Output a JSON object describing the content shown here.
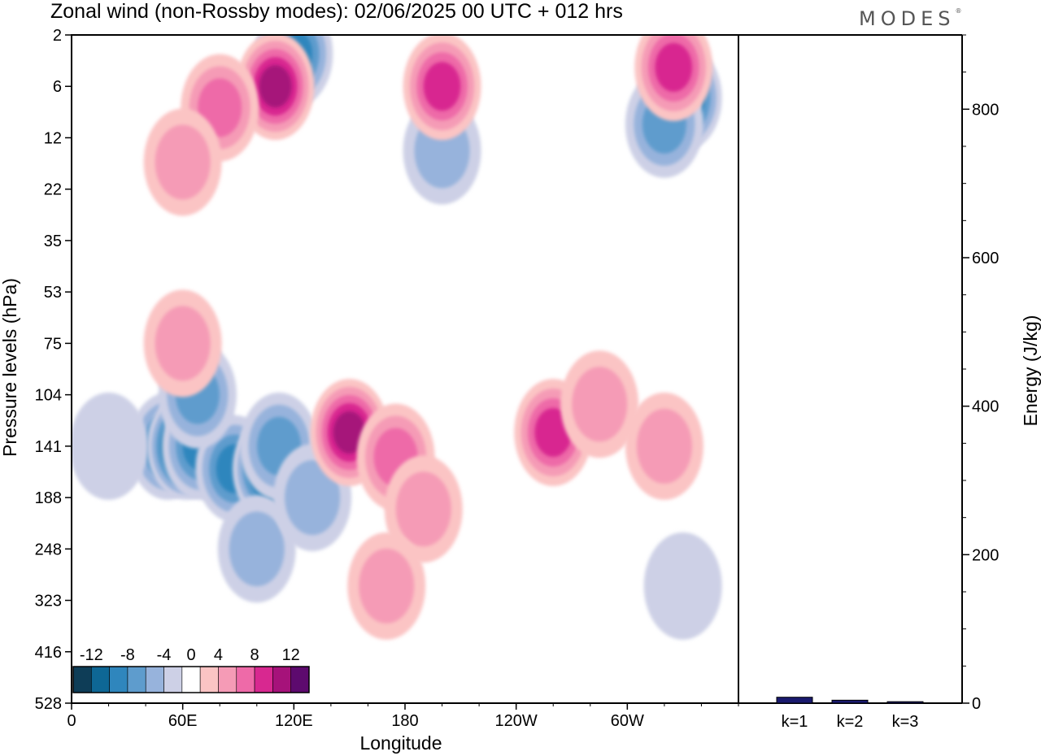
{
  "header": {
    "title": "Zonal wind (non-Rossby modes):  02/06/2025  00 UTC  + 012 hrs",
    "brand": "MODES"
  },
  "chart_data": [
    {
      "type": "heatmap",
      "xlabel": "Longitude",
      "ylabel": "Pressure levels (hPa)",
      "x_ticks": [
        "0",
        "60E",
        "120E",
        "180",
        "120W",
        "60W"
      ],
      "x_tick_values": [
        0,
        60,
        120,
        180,
        240,
        300
      ],
      "xlim": [
        0,
        360
      ],
      "y_ticks": [
        "2",
        "6",
        "12",
        "22",
        "35",
        "53",
        "75",
        "104",
        "141",
        "188",
        "248",
        "323",
        "416",
        "528"
      ],
      "y_scale": "pressure-levels",
      "colorbar": {
        "labels": [
          "-12",
          "-8",
          "-4",
          "0",
          "4",
          "8",
          "12"
        ],
        "levels": [
          -14,
          -12,
          -10,
          -8,
          -6,
          -4,
          -2,
          2,
          4,
          6,
          8,
          10,
          12,
          14
        ],
        "colors": [
          "#0e3d57",
          "#0e6795",
          "#2f86bd",
          "#5e9ccd",
          "#97b3dc",
          "#cdd0e6",
          "#ffffff",
          "#fbc4c4",
          "#f59bb6",
          "#ee6aa8",
          "#d82890",
          "#a6127a",
          "#5d0a6e"
        ]
      },
      "blobs": [
        {
          "x": 52,
          "p": 141,
          "v": -8
        },
        {
          "x": 62,
          "p": 141,
          "v": -14
        },
        {
          "x": 70,
          "p": 141,
          "v": -8
        },
        {
          "x": 88,
          "p": 160,
          "v": -8
        },
        {
          "x": 108,
          "p": 160,
          "v": -11
        },
        {
          "x": 112,
          "p": 141,
          "v": -6
        },
        {
          "x": 68,
          "p": 104,
          "v": -5
        },
        {
          "x": 100,
          "p": 248,
          "v": -4
        },
        {
          "x": 20,
          "p": 141,
          "v": -2
        },
        {
          "x": 330,
          "p": 7,
          "v": -9
        },
        {
          "x": 320,
          "p": 10,
          "v": -5
        },
        {
          "x": 120,
          "p": 3,
          "v": -7
        },
        {
          "x": 200,
          "p": 14,
          "v": -3
        },
        {
          "x": 130,
          "p": 188,
          "v": -3
        },
        {
          "x": 330,
          "p": 300,
          "v": -2
        },
        {
          "x": 150,
          "p": 130,
          "v": 9
        },
        {
          "x": 175,
          "p": 150,
          "v": 6
        },
        {
          "x": 190,
          "p": 200,
          "v": 4
        },
        {
          "x": 170,
          "p": 300,
          "v": 3
        },
        {
          "x": 260,
          "p": 130,
          "v": 7
        },
        {
          "x": 285,
          "p": 110,
          "v": 4
        },
        {
          "x": 110,
          "p": 6,
          "v": 9
        },
        {
          "x": 80,
          "p": 8,
          "v": 5
        },
        {
          "x": 200,
          "p": 6,
          "v": 7
        },
        {
          "x": 325,
          "p": 4,
          "v": 8
        },
        {
          "x": 60,
          "p": 75,
          "v": 3
        },
        {
          "x": 320,
          "p": 141,
          "v": 4
        },
        {
          "x": 60,
          "p": 16,
          "v": 3
        }
      ]
    },
    {
      "type": "bar",
      "categories": [
        "k=1",
        "k=2",
        "k=3"
      ],
      "values": [
        8,
        4,
        2
      ],
      "ylabel": "Energy (J/kg)",
      "ylim": [
        0,
        900
      ],
      "y_ticks": [
        0,
        200,
        400,
        600,
        800
      ]
    }
  ]
}
